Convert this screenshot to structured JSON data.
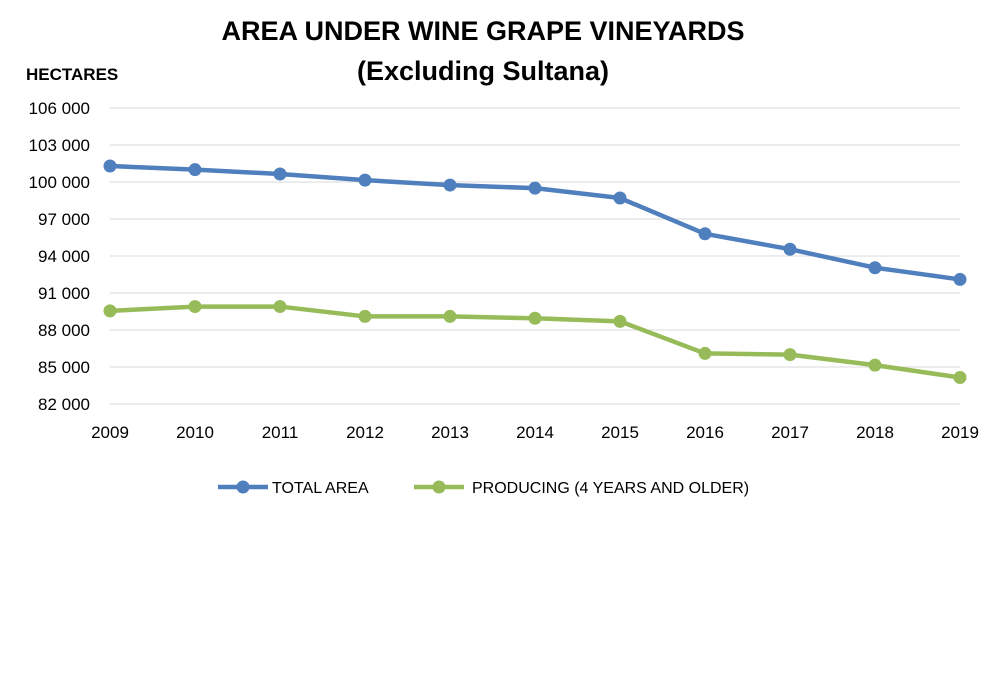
{
  "chart_data": {
    "type": "line",
    "title": "AREA UNDER WINE GRAPE VINEYARDS",
    "subtitle": "(Excluding Sultana)",
    "xlabel": "",
    "ylabel": "HECTARES",
    "x": [
      "2009",
      "2010",
      "2011",
      "2012",
      "2013",
      "2014",
      "2015",
      "2016",
      "2017",
      "2018",
      "2019"
    ],
    "yticks": [
      "106 000",
      "103 000",
      "100 000",
      "97 000",
      "94 000",
      "91 000",
      "88 000",
      "85 000",
      "82 000"
    ],
    "ylim": [
      82000,
      106000
    ],
    "grid": true,
    "legend_position": "bottom",
    "series": [
      {
        "name": "TOTAL AREA",
        "color": "#4f7fbd",
        "values": [
          101300,
          101000,
          100650,
          100150,
          99750,
          99500,
          98700,
          95800,
          94550,
          93050,
          92100
        ]
      },
      {
        "name": "PRODUCING (4 YEARS AND OLDER)",
        "color": "#98bb59",
        "values": [
          89550,
          89900,
          89900,
          89100,
          89100,
          88950,
          88700,
          86100,
          86000,
          85150,
          84150
        ]
      }
    ]
  }
}
